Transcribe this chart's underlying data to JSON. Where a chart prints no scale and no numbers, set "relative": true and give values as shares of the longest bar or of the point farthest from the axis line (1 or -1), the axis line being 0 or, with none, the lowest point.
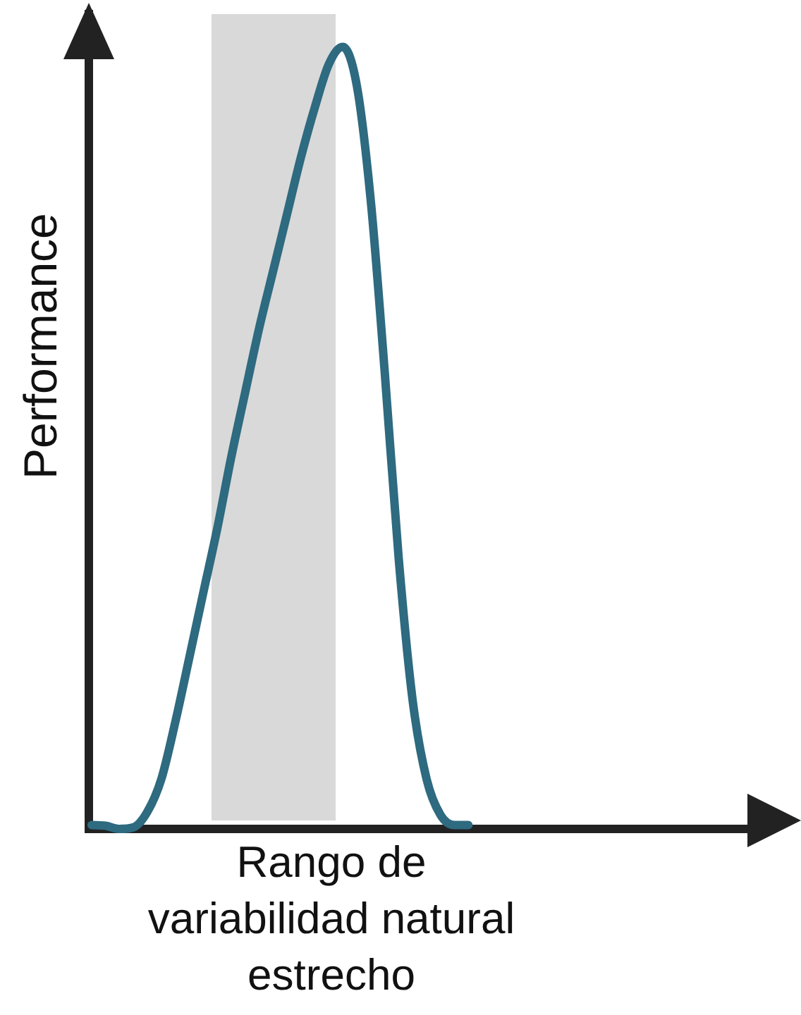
{
  "chart_data": {
    "type": "line",
    "relative": true,
    "xlabel": "Rango de variabilidad natural estrecho",
    "ylabel": "Performance",
    "categories": [
      null,
      null,
      null,
      null,
      null,
      null,
      null,
      null,
      null,
      null,
      null,
      null,
      null,
      null,
      null,
      null,
      null,
      null,
      null,
      null,
      null,
      null,
      null,
      null,
      null,
      null,
      null,
      null
    ],
    "series": [
      {
        "color": "#2e6a80",
        "values": [
          0.005,
          0.004,
          0,
          0.002,
          0.022,
          0.064,
          0.137,
          0.219,
          0.302,
          0.384,
          0.475,
          0.558,
          0.64,
          0.713,
          0.786,
          0.859,
          0.923,
          0.978,
          1,
          0.951,
          0.804,
          0.585,
          0.347,
          0.165,
          0.064,
          0.018,
          0.005,
          0.005
        ]
      }
    ],
    "legend": false,
    "marker": "none",
    "line_style": "solid"
  }
}
